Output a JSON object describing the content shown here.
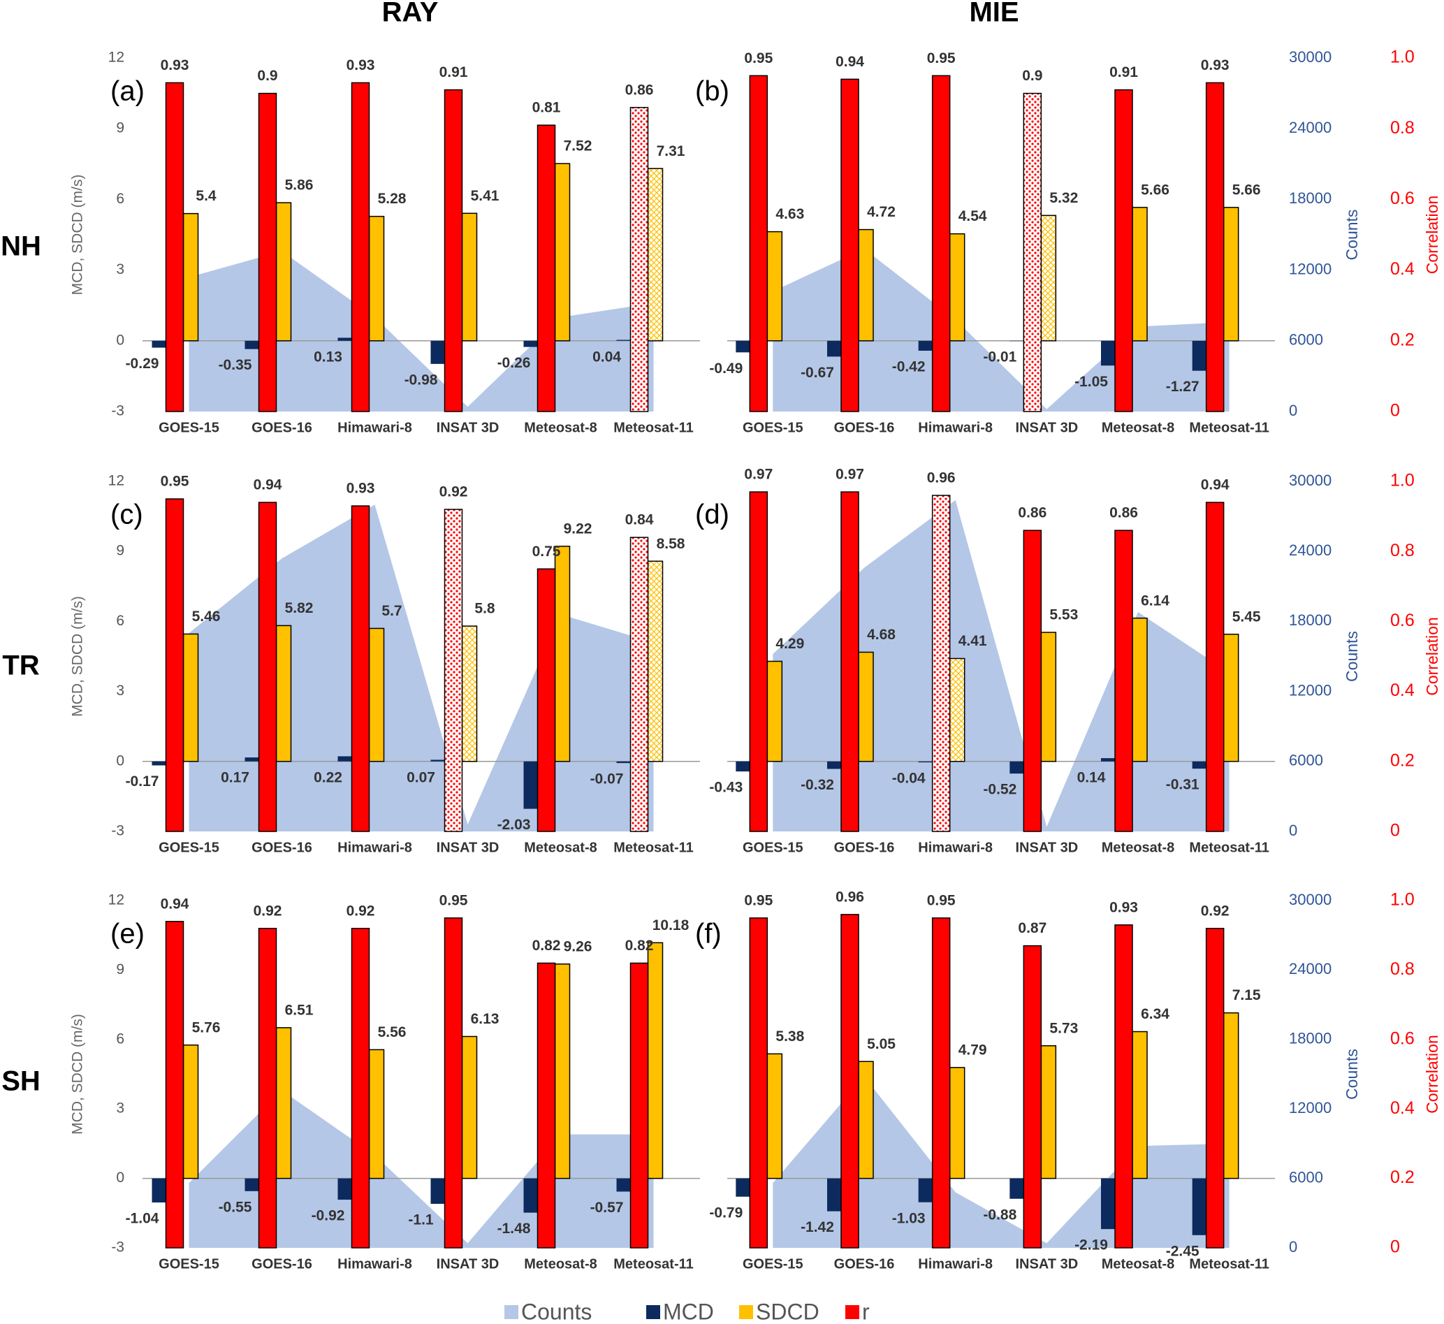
{
  "column_titles": [
    "RAY",
    "MIE"
  ],
  "row_titles": [
    "NH",
    "TR",
    "SH"
  ],
  "chart_data": [
    {
      "type": "bar",
      "title": "(a)",
      "categories": [
        "GOES-15",
        "GOES-16",
        "Himawari-8",
        "INSAT 3D",
        "Meteosat-8",
        "Meteosat-11"
      ],
      "ylim": [
        -3,
        12
      ],
      "yticks": [
        -3,
        0,
        3,
        6,
        9,
        12
      ],
      "ylabel": "MCD, SDCD (m/s)",
      "y2lim": [
        0,
        30000
      ],
      "y3lim": [
        0,
        1
      ],
      "hatched": [
        5
      ],
      "series": [
        {
          "name": "Counts",
          "color": "#b4c7e7",
          "axis": "y2",
          "values": [
            11400,
            13600,
            8000,
            400,
            8000,
            9200
          ]
        },
        {
          "name": "MCD",
          "color": "#0c2a5e",
          "values": [
            -0.29,
            -0.35,
            0.13,
            -0.98,
            -0.26,
            0.04
          ]
        },
        {
          "name": "SDCD",
          "color": "#ffc000",
          "values": [
            5.4,
            5.86,
            5.28,
            5.41,
            7.52,
            7.31
          ]
        },
        {
          "name": "r",
          "color": "#ff0000",
          "axis": "y3",
          "values": [
            0.93,
            0.9,
            0.93,
            0.91,
            0.81,
            0.86
          ]
        }
      ]
    },
    {
      "type": "bar",
      "title": "(b)",
      "categories": [
        "GOES-15",
        "GOES-16",
        "Himawari-8",
        "INSAT 3D",
        "Meteosat-8",
        "Meteosat-11"
      ],
      "ylim": [
        -3,
        12
      ],
      "y2lim": [
        0,
        30000
      ],
      "y2ticks": [
        0,
        6000,
        12000,
        18000,
        24000,
        30000
      ],
      "y2label": "Counts",
      "y3lim": [
        0,
        1
      ],
      "y3ticks": [
        0,
        0.2,
        0.4,
        0.6,
        0.8,
        {
          "value": 1,
          "label": "1.0"
        }
      ],
      "y3label": "Correlation",
      "hatched": [
        3
      ],
      "series": [
        {
          "name": "Counts",
          "color": "#b4c7e7",
          "axis": "y2",
          "values": [
            10200,
            13800,
            7800,
            200,
            7200,
            7600
          ]
        },
        {
          "name": "MCD",
          "color": "#0c2a5e",
          "values": [
            -0.49,
            -0.67,
            -0.42,
            -0.01,
            -1.05,
            -1.27
          ]
        },
        {
          "name": "SDCD",
          "color": "#ffc000",
          "values": [
            4.63,
            4.72,
            4.54,
            5.32,
            5.66,
            5.66
          ]
        },
        {
          "name": "r",
          "color": "#ff0000",
          "axis": "y3",
          "values": [
            0.95,
            0.94,
            0.95,
            0.9,
            0.91,
            0.93
          ]
        }
      ]
    },
    {
      "type": "bar",
      "title": "(c)",
      "categories": [
        "GOES-15",
        "GOES-16",
        "Himawari-8",
        "INSAT 3D",
        "Meteosat-8",
        "Meteosat-11"
      ],
      "ylim": [
        -3,
        12
      ],
      "yticks": [
        -3,
        0,
        3,
        6,
        9,
        12
      ],
      "ylabel": "MCD, SDCD (m/s)",
      "y2lim": [
        0,
        30000
      ],
      "y3lim": [
        0,
        1
      ],
      "hatched": [
        3,
        5
      ],
      "series": [
        {
          "name": "Counts",
          "color": "#b4c7e7",
          "axis": "y2",
          "values": [
            17000,
            23400,
            28000,
            600,
            18600,
            16200
          ]
        },
        {
          "name": "MCD",
          "color": "#0c2a5e",
          "values": [
            -0.17,
            0.17,
            0.22,
            0.07,
            -2.03,
            -0.07
          ]
        },
        {
          "name": "SDCD",
          "color": "#ffc000",
          "values": [
            5.46,
            5.82,
            5.7,
            5.8,
            9.22,
            8.58
          ]
        },
        {
          "name": "r",
          "color": "#ff0000",
          "axis": "y3",
          "values": [
            0.95,
            0.94,
            0.93,
            0.92,
            0.75,
            0.84
          ]
        }
      ]
    },
    {
      "type": "bar",
      "title": "(d)",
      "categories": [
        "GOES-15",
        "GOES-16",
        "Himawari-8",
        "INSAT 3D",
        "Meteosat-8",
        "Meteosat-11"
      ],
      "ylim": [
        -3,
        12
      ],
      "y2lim": [
        0,
        30000
      ],
      "y2ticks": [
        0,
        6000,
        12000,
        18000,
        24000,
        30000
      ],
      "y2label": "Counts",
      "y3lim": [
        0,
        1
      ],
      "y3ticks": [
        0,
        0.2,
        0.4,
        0.6,
        0.8,
        {
          "value": 1,
          "label": "1.0"
        }
      ],
      "y3label": "Correlation",
      "hatched": [
        2
      ],
      "series": [
        {
          "name": "Counts",
          "color": "#b4c7e7",
          "axis": "y2",
          "values": [
            15200,
            22600,
            28400,
            400,
            18800,
            13600
          ]
        },
        {
          "name": "MCD",
          "color": "#0c2a5e",
          "values": [
            -0.43,
            -0.32,
            -0.04,
            -0.52,
            0.14,
            -0.31
          ]
        },
        {
          "name": "SDCD",
          "color": "#ffc000",
          "values": [
            4.29,
            4.68,
            4.41,
            5.53,
            6.14,
            5.45
          ]
        },
        {
          "name": "r",
          "color": "#ff0000",
          "axis": "y3",
          "values": [
            0.97,
            0.97,
            0.96,
            0.86,
            0.86,
            0.94
          ]
        }
      ]
    },
    {
      "type": "bar",
      "title": "(e)",
      "categories": [
        "GOES-15",
        "GOES-16",
        "Himawari-8",
        "INSAT 3D",
        "Meteosat-8",
        "Meteosat-11"
      ],
      "ylim": [
        -3,
        12
      ],
      "yticks": [
        -3,
        0,
        3,
        6,
        9,
        12
      ],
      "ylabel": "MCD, SDCD (m/s)",
      "y2lim": [
        0,
        30000
      ],
      "y3lim": [
        0,
        1
      ],
      "series": [
        {
          "name": "Counts",
          "color": "#b4c7e7",
          "axis": "y2",
          "values": [
            5600,
            13600,
            8000,
            400,
            9800,
            9800
          ]
        },
        {
          "name": "MCD",
          "color": "#0c2a5e",
          "values": [
            -1.04,
            -0.55,
            -0.92,
            -1.1,
            -1.48,
            -0.57
          ]
        },
        {
          "name": "SDCD",
          "color": "#ffc000",
          "values": [
            5.76,
            6.51,
            5.56,
            6.13,
            9.26,
            10.18
          ]
        },
        {
          "name": "r",
          "color": "#ff0000",
          "axis": "y3",
          "values": [
            0.94,
            0.92,
            0.92,
            0.95,
            0.82,
            0.82
          ]
        }
      ]
    },
    {
      "type": "bar",
      "title": "(f)",
      "categories": [
        "GOES-15",
        "GOES-16",
        "Himawari-8",
        "INSAT 3D",
        "Meteosat-8",
        "Meteosat-11"
      ],
      "ylim": [
        -3,
        12
      ],
      "y2lim": [
        0,
        30000
      ],
      "y2ticks": [
        0,
        6000,
        12000,
        18000,
        24000,
        30000
      ],
      "y2label": "Counts",
      "y3lim": [
        0,
        1
      ],
      "y3ticks": [
        0,
        0.2,
        0.4,
        0.6,
        0.8,
        {
          "value": 1,
          "label": "1.0"
        }
      ],
      "y3label": "Correlation",
      "series": [
        {
          "name": "Counts",
          "color": "#b4c7e7",
          "axis": "y2",
          "values": [
            5600,
            14800,
            4800,
            400,
            8800,
            9000
          ]
        },
        {
          "name": "MCD",
          "color": "#0c2a5e",
          "values": [
            -0.79,
            -1.42,
            -1.03,
            -0.88,
            -2.19,
            -2.45
          ]
        },
        {
          "name": "SDCD",
          "color": "#ffc000",
          "values": [
            5.38,
            5.05,
            4.79,
            5.73,
            6.34,
            7.15
          ]
        },
        {
          "name": "r",
          "color": "#ff0000",
          "axis": "y3",
          "values": [
            0.95,
            0.96,
            0.95,
            0.87,
            0.93,
            0.92
          ]
        }
      ]
    }
  ]
}
